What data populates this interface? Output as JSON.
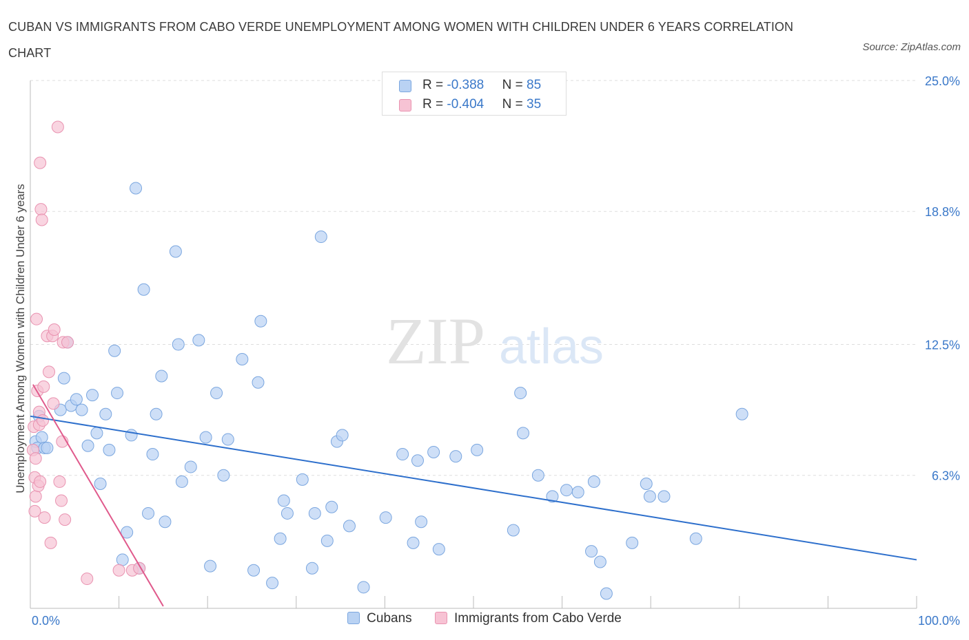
{
  "title": "CUBAN VS IMMIGRANTS FROM CABO VERDE UNEMPLOYMENT AMONG WOMEN WITH CHILDREN UNDER 6 YEARS CORRELATION CHART",
  "source": "Source: ZipAtlas.com",
  "watermark": {
    "zip": "ZIP",
    "atlas": "atlas"
  },
  "stats": [
    {
      "r_label": "R = ",
      "r_value": "-0.388",
      "n_label": "N = ",
      "n_value": "85"
    },
    {
      "r_label": "R = ",
      "r_value": "-0.404",
      "n_label": "N = ",
      "n_value": "35"
    }
  ],
  "legend": [
    "Cubans",
    "Immigrants from Cabo Verde"
  ],
  "colors": {
    "cubans_fill": "#b9d2f3",
    "cubans_stroke": "#7aa6df",
    "cubans_line": "#2d6fcc",
    "cabo_fill": "#f7c3d4",
    "cabo_stroke": "#e992b0",
    "cabo_line": "#e05a8c",
    "axis_text": "#3a78c9",
    "grid": "#dddddd"
  },
  "chart_data": {
    "type": "scatter",
    "title": "CUBAN VS IMMIGRANTS FROM CABO VERDE UNEMPLOYMENT AMONG WOMEN WITH CHILDREN UNDER 6 YEARS CORRELATION CHART",
    "xlabel": "",
    "ylabel": "Unemployment Among Women with Children Under 6 years",
    "xlim": [
      0,
      100
    ],
    "ylim": [
      0,
      25
    ],
    "x_ticks": [
      "0.0%",
      "100.0%"
    ],
    "y_ticks": [
      {
        "value": 6.3,
        "label": "6.3%"
      },
      {
        "value": 12.5,
        "label": "12.5%"
      },
      {
        "value": 18.8,
        "label": "18.8%"
      },
      {
        "value": 25.0,
        "label": "25.0%"
      }
    ],
    "grid": true,
    "legend_position": "bottom",
    "series": [
      {
        "name": "Cubans",
        "trend": {
          "x": [
            0,
            100
          ],
          "y": [
            9.1,
            2.3
          ]
        },
        "points": [
          [
            0.6,
            7.9
          ],
          [
            1.0,
            9.1
          ],
          [
            0.8,
            7.6
          ],
          [
            1.3,
            8.1
          ],
          [
            1.6,
            7.6
          ],
          [
            1.9,
            7.6
          ],
          [
            3.4,
            9.4
          ],
          [
            3.8,
            10.9
          ],
          [
            4.2,
            12.6
          ],
          [
            4.6,
            9.6
          ],
          [
            5.2,
            9.9
          ],
          [
            5.8,
            9.4
          ],
          [
            6.5,
            7.7
          ],
          [
            7.0,
            10.1
          ],
          [
            7.5,
            8.3
          ],
          [
            7.9,
            5.9
          ],
          [
            8.5,
            9.2
          ],
          [
            8.9,
            7.5
          ],
          [
            9.5,
            12.2
          ],
          [
            9.8,
            10.2
          ],
          [
            10.4,
            2.3
          ],
          [
            10.9,
            3.6
          ],
          [
            11.4,
            8.2
          ],
          [
            11.9,
            19.9
          ],
          [
            12.3,
            1.9
          ],
          [
            12.8,
            15.1
          ],
          [
            13.3,
            4.5
          ],
          [
            13.8,
            7.3
          ],
          [
            14.2,
            9.2
          ],
          [
            14.8,
            11.0
          ],
          [
            15.2,
            4.1
          ],
          [
            16.4,
            16.9
          ],
          [
            16.7,
            12.5
          ],
          [
            17.1,
            6.0
          ],
          [
            18.1,
            6.7
          ],
          [
            19.0,
            12.7
          ],
          [
            19.8,
            8.1
          ],
          [
            20.3,
            2.0
          ],
          [
            21.0,
            10.2
          ],
          [
            21.8,
            6.3
          ],
          [
            22.3,
            8.0
          ],
          [
            23.9,
            11.8
          ],
          [
            25.2,
            1.8
          ],
          [
            25.7,
            10.7
          ],
          [
            26.0,
            13.6
          ],
          [
            27.3,
            1.2
          ],
          [
            28.2,
            3.3
          ],
          [
            28.6,
            5.1
          ],
          [
            29.0,
            4.5
          ],
          [
            30.7,
            6.1
          ],
          [
            31.8,
            1.9
          ],
          [
            32.1,
            4.5
          ],
          [
            32.8,
            17.6
          ],
          [
            33.5,
            3.2
          ],
          [
            34.0,
            4.8
          ],
          [
            34.6,
            7.9
          ],
          [
            35.2,
            8.2
          ],
          [
            36.0,
            3.9
          ],
          [
            37.6,
            1.0
          ],
          [
            40.1,
            4.3
          ],
          [
            42.0,
            7.3
          ],
          [
            43.2,
            3.1
          ],
          [
            43.7,
            7.0
          ],
          [
            44.1,
            4.1
          ],
          [
            45.5,
            7.4
          ],
          [
            46.1,
            2.8
          ],
          [
            48.0,
            7.2
          ],
          [
            50.4,
            7.5
          ],
          [
            54.5,
            3.7
          ],
          [
            55.3,
            10.2
          ],
          [
            55.6,
            8.3
          ],
          [
            57.3,
            6.3
          ],
          [
            58.9,
            5.3
          ],
          [
            60.5,
            5.6
          ],
          [
            61.8,
            5.5
          ],
          [
            63.3,
            2.7
          ],
          [
            63.6,
            6.0
          ],
          [
            64.3,
            2.2
          ],
          [
            65.0,
            0.7
          ],
          [
            67.9,
            3.1
          ],
          [
            69.5,
            5.9
          ],
          [
            69.9,
            5.3
          ],
          [
            71.5,
            5.3
          ],
          [
            75.1,
            3.3
          ],
          [
            80.3,
            9.2
          ]
        ]
      },
      {
        "name": "Immigrants from Cabo Verde",
        "trend": {
          "x": [
            0.3,
            15.0
          ],
          "y": [
            10.6,
            0.1
          ]
        },
        "points": [
          [
            0.3,
            7.5
          ],
          [
            0.4,
            8.6
          ],
          [
            0.5,
            6.2
          ],
          [
            0.5,
            4.6
          ],
          [
            0.6,
            5.3
          ],
          [
            0.6,
            7.1
          ],
          [
            0.7,
            13.7
          ],
          [
            0.8,
            10.3
          ],
          [
            0.9,
            5.8
          ],
          [
            1.0,
            9.3
          ],
          [
            1.1,
            6.0
          ],
          [
            1.0,
            8.7
          ],
          [
            1.1,
            21.1
          ],
          [
            1.2,
            18.9
          ],
          [
            1.3,
            18.4
          ],
          [
            1.4,
            8.9
          ],
          [
            1.5,
            10.5
          ],
          [
            1.6,
            4.3
          ],
          [
            1.9,
            12.9
          ],
          [
            2.1,
            11.2
          ],
          [
            2.3,
            3.1
          ],
          [
            2.5,
            12.9
          ],
          [
            2.6,
            9.7
          ],
          [
            2.7,
            13.2
          ],
          [
            3.1,
            22.8
          ],
          [
            3.3,
            6.0
          ],
          [
            3.5,
            5.1
          ],
          [
            3.6,
            7.9
          ],
          [
            3.7,
            12.6
          ],
          [
            3.9,
            4.2
          ],
          [
            4.2,
            12.6
          ],
          [
            6.4,
            1.4
          ],
          [
            10.0,
            1.8
          ],
          [
            11.5,
            1.8
          ],
          [
            12.3,
            1.9
          ]
        ]
      }
    ]
  }
}
